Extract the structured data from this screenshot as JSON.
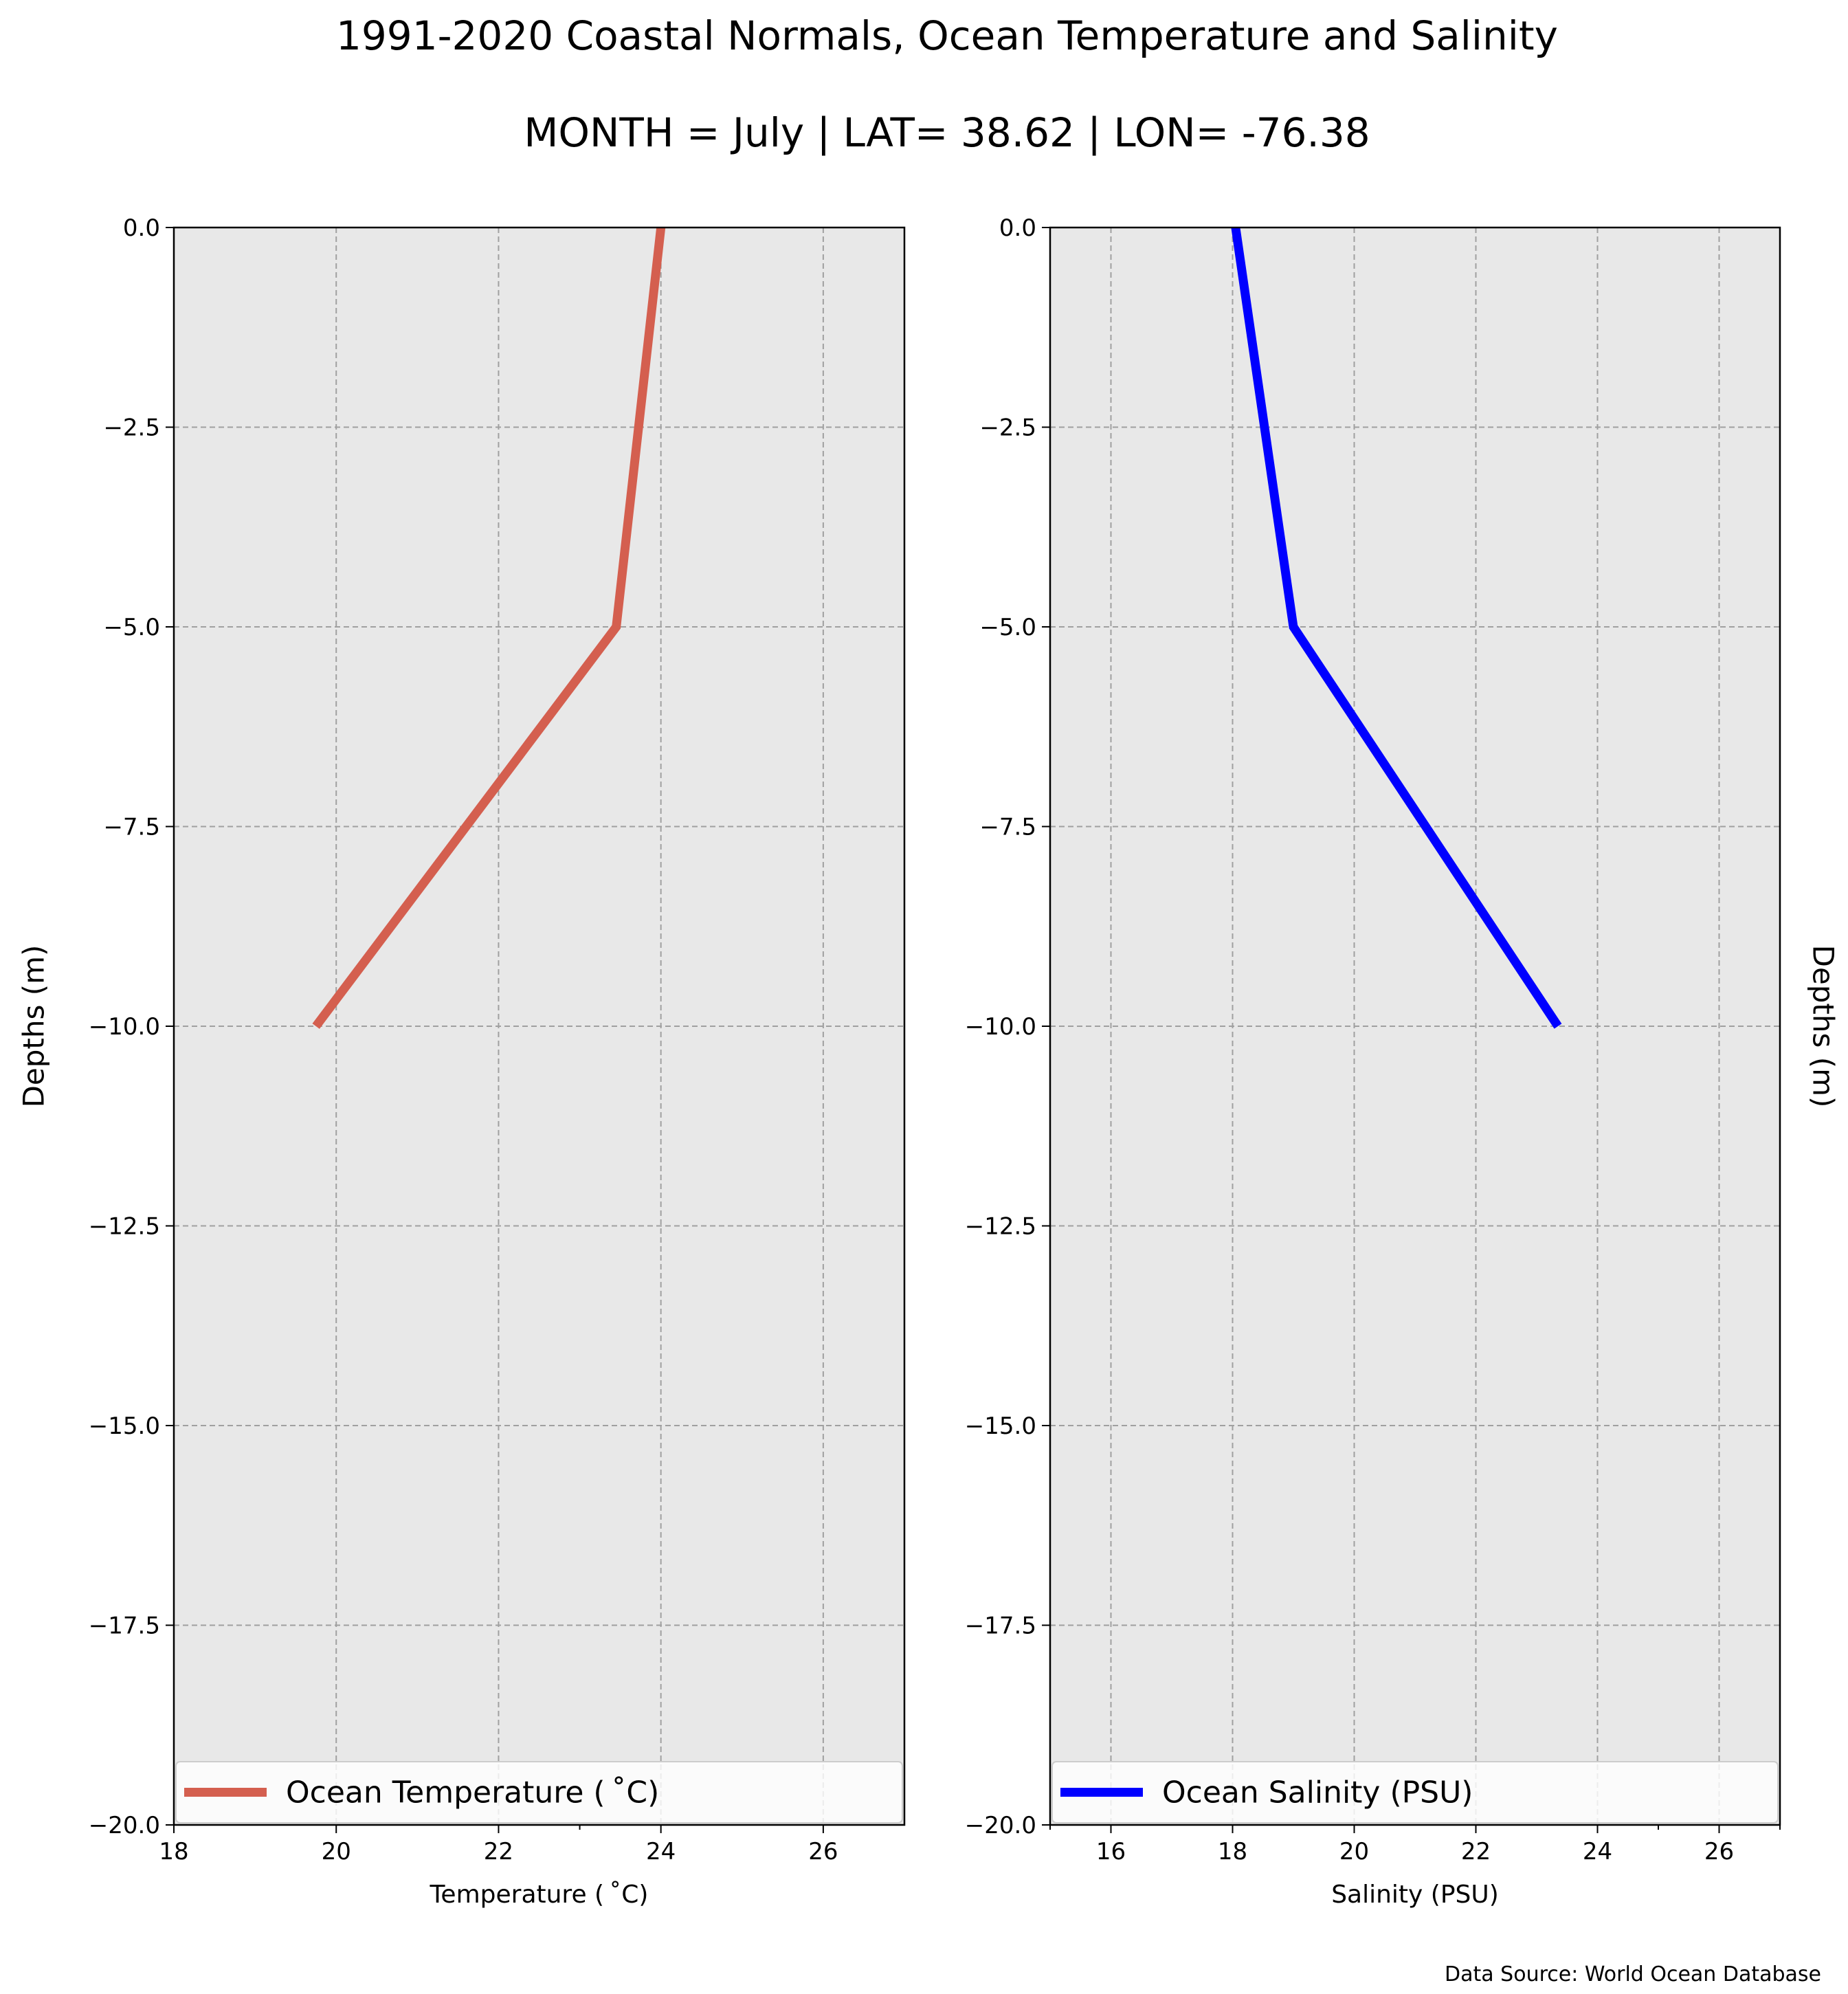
{
  "title": "1991-2020 Coastal Normals, Ocean Temperature and Salinity",
  "subtitle": "MONTH = July | LAT= 38.62 | LON= -76.38",
  "source": "Data Source: World Ocean Database",
  "colors": {
    "panel_bg": "#e8e8e8",
    "temperature": "#d45f4f",
    "salinity": "#0000ff"
  },
  "chart_data": [
    {
      "type": "line",
      "xlabel": "Temperature ( ˚C)",
      "ylabel": "Depths (m)",
      "xlim": [
        18,
        27
      ],
      "ylim": [
        -20,
        0
      ],
      "xticks": [
        18,
        20,
        22,
        24,
        26
      ],
      "xtick_labels": [
        "18",
        "20",
        "22",
        "24",
        "26"
      ],
      "xminor": [
        23
      ],
      "yticks": [
        0,
        -2.5,
        -5,
        -7.5,
        -10,
        -12.5,
        -15,
        -17.5,
        -20
      ],
      "ytick_labels": [
        "0.0",
        "−2.5",
        "−5.0",
        "−7.5",
        "−10.0",
        "−12.5",
        "−15.0",
        "−17.5",
        "−20.0"
      ],
      "grid": true,
      "legend": "lower center",
      "series": [
        {
          "name": "Ocean Temperature ( ˚C)",
          "color": "#d45f4f",
          "x": [
            24.0,
            23.45,
            19.75
          ],
          "y": [
            0,
            -5,
            -10
          ]
        }
      ]
    },
    {
      "type": "line",
      "xlabel": "Salinity (PSU)",
      "ylabel": "Depths (m)",
      "xlim": [
        15,
        27
      ],
      "ylim": [
        -20,
        0
      ],
      "xticks": [
        16,
        18,
        20,
        22,
        24,
        26
      ],
      "xtick_labels": [
        "16",
        "18",
        "20",
        "22",
        "24",
        "26"
      ],
      "xminor": [
        15,
        25,
        27
      ],
      "yticks": [
        0,
        -2.5,
        -5,
        -7.5,
        -10,
        -12.5,
        -15,
        -17.5,
        -20
      ],
      "ytick_labels": [
        "0.0",
        "−2.5",
        "−5.0",
        "−7.5",
        "−10.0",
        "−12.5",
        "−15.0",
        "−17.5",
        "−20.0"
      ],
      "grid": true,
      "legend": "lower center",
      "series": [
        {
          "name": "Ocean Salinity (PSU)",
          "color": "#0000ff",
          "x": [
            18.05,
            19.0,
            23.35
          ],
          "y": [
            0,
            -5,
            -10
          ]
        }
      ]
    }
  ]
}
